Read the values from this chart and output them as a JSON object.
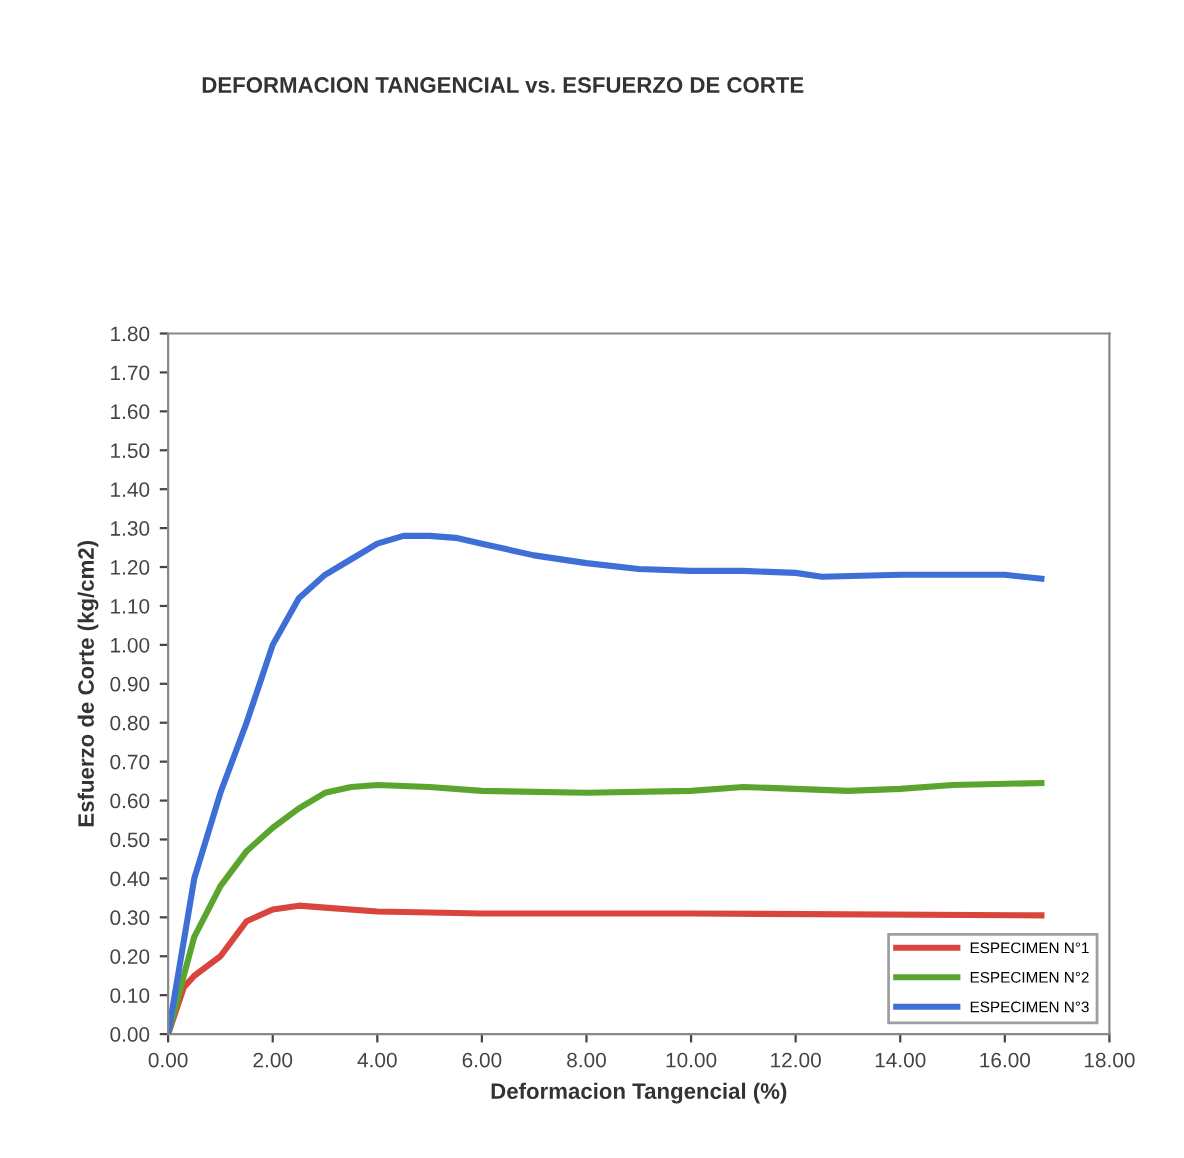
{
  "chart_data": {
    "type": "line",
    "title": "DEFORMACION TANGENCIAL vs. ESFUERZO DE CORTE",
    "xlabel": "Deformacion Tangencial (%)",
    "ylabel": "Esfuerzo de Corte (kg/cm2)",
    "xlim": [
      0,
      18
    ],
    "ylim": [
      0,
      1.8
    ],
    "xticks": [
      {
        "value": 0,
        "label": "0.00"
      },
      {
        "value": 2,
        "label": "2.00"
      },
      {
        "value": 4,
        "label": "4.00"
      },
      {
        "value": 6,
        "label": "6.00"
      },
      {
        "value": 8,
        "label": "8.00"
      },
      {
        "value": 10,
        "label": "10.00"
      },
      {
        "value": 12,
        "label": "12.00"
      },
      {
        "value": 14,
        "label": "14.00"
      },
      {
        "value": 16,
        "label": "16.00"
      },
      {
        "value": 18,
        "label": "18.00"
      }
    ],
    "yticks": [
      {
        "value": 0,
        "label": "0.00"
      },
      {
        "value": 0.1,
        "label": "0.10"
      },
      {
        "value": 0.2,
        "label": "0.20"
      },
      {
        "value": 0.3,
        "label": "0.30"
      },
      {
        "value": 0.4,
        "label": "0.40"
      },
      {
        "value": 0.5,
        "label": "0.50"
      },
      {
        "value": 0.6,
        "label": "0.60"
      },
      {
        "value": 0.7,
        "label": "0.70"
      },
      {
        "value": 0.8,
        "label": "0.80"
      },
      {
        "value": 0.9,
        "label": "0.90"
      },
      {
        "value": 1.0,
        "label": "1.00"
      },
      {
        "value": 1.1,
        "label": "1.10"
      },
      {
        "value": 1.2,
        "label": "1.20"
      },
      {
        "value": 1.3,
        "label": "1.30"
      },
      {
        "value": 1.4,
        "label": "1.40"
      },
      {
        "value": 1.5,
        "label": "1.50"
      },
      {
        "value": 1.6,
        "label": "1.60"
      },
      {
        "value": 1.7,
        "label": "1.70"
      },
      {
        "value": 1.8,
        "label": "1.80"
      }
    ],
    "grid": false,
    "legend": "bottom right",
    "marker": "none",
    "line_style": "solid",
    "series": [
      {
        "name": "ESPECIMEN N°1",
        "color": "#d9453c",
        "x": [
          0,
          0.3,
          0.5,
          1,
          1.5,
          2,
          2.5,
          3,
          4,
          6,
          10,
          16.7
        ],
        "values": [
          0,
          0.12,
          0.15,
          0.2,
          0.29,
          0.32,
          0.33,
          0.325,
          0.315,
          0.31,
          0.31,
          0.305
        ]
      },
      {
        "name": "ESPECIMEN N°2",
        "color": "#5aa52e",
        "x": [
          0,
          0.5,
          1,
          1.5,
          2,
          2.5,
          3,
          3.5,
          4,
          5,
          6,
          8,
          10,
          11,
          12,
          13,
          14,
          15,
          16.7
        ],
        "values": [
          0,
          0.25,
          0.38,
          0.47,
          0.53,
          0.58,
          0.62,
          0.635,
          0.64,
          0.635,
          0.625,
          0.62,
          0.625,
          0.635,
          0.63,
          0.625,
          0.63,
          0.64,
          0.645
        ]
      },
      {
        "name": "ESPECIMEN N°3",
        "color": "#3d6fd6",
        "x": [
          0,
          0.5,
          1,
          1.5,
          2,
          2.5,
          3,
          3.5,
          4,
          4.5,
          5,
          5.5,
          6,
          7,
          8,
          9,
          10,
          11,
          12,
          12.5,
          14,
          16,
          16.7
        ],
        "values": [
          0,
          0.4,
          0.62,
          0.8,
          1.0,
          1.12,
          1.18,
          1.22,
          1.26,
          1.28,
          1.28,
          1.275,
          1.26,
          1.23,
          1.21,
          1.195,
          1.19,
          1.19,
          1.185,
          1.175,
          1.18,
          1.18,
          1.17
        ]
      }
    ]
  }
}
